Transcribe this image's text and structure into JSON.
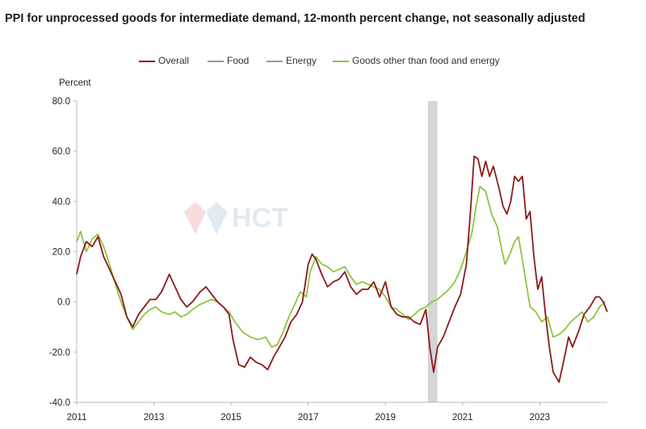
{
  "title": "PPI for unprocessed goods for intermediate demand, 12-month percent change, not seasonally adjusted",
  "colors": {
    "overall": "#8b1a1a",
    "food": "#999999",
    "energy": "#999999",
    "other": "#8cc63f",
    "recession": "#d5d5d5",
    "axis": "#bbbbbb"
  },
  "watermark": "HCT",
  "chart_data": {
    "type": "line",
    "title": "PPI for unprocessed goods for intermediate demand, 12-month percent change, not seasonally adjusted",
    "ylabel": "Percent",
    "xlabel": "",
    "ylim": [
      -40,
      80
    ],
    "xlim": [
      2011,
      2024.75
    ],
    "y_ticks": [
      "80.0",
      "60.0",
      "40.0",
      "20.0",
      "0.0",
      "-20.0",
      "-40.0"
    ],
    "x_ticks": [
      "2011",
      "2013",
      "2015",
      "2017",
      "2019",
      "2021",
      "2023"
    ],
    "legend": [
      "Overall",
      "Food",
      "Energy",
      "Goods other than food and energy"
    ],
    "recession_band": [
      2020.1,
      2020.35
    ],
    "series": [
      {
        "name": "Overall",
        "color": "#8b1a1a",
        "x": [
          2011.0,
          2011.1,
          2011.25,
          2011.4,
          2011.55,
          2011.7,
          2011.85,
          2012.0,
          2012.15,
          2012.3,
          2012.45,
          2012.6,
          2012.75,
          2012.9,
          2013.05,
          2013.2,
          2013.4,
          2013.55,
          2013.7,
          2013.85,
          2014.0,
          2014.2,
          2014.35,
          2014.5,
          2014.65,
          2014.8,
          2014.95,
          2015.05,
          2015.2,
          2015.35,
          2015.5,
          2015.65,
          2015.8,
          2015.95,
          2016.1,
          2016.25,
          2016.4,
          2016.55,
          2016.7,
          2016.85,
          2017.0,
          2017.1,
          2017.2,
          2017.35,
          2017.5,
          2017.65,
          2017.8,
          2017.95,
          2018.1,
          2018.25,
          2018.4,
          2018.55,
          2018.7,
          2018.85,
          2019.0,
          2019.15,
          2019.3,
          2019.45,
          2019.6,
          2019.75,
          2019.9,
          2020.05,
          2020.15,
          2020.25,
          2020.35,
          2020.5,
          2020.65,
          2020.8,
          2020.95,
          2021.1,
          2021.2,
          2021.3,
          2021.4,
          2021.5,
          2021.6,
          2021.7,
          2021.8,
          2021.95,
          2022.05,
          2022.15,
          2022.25,
          2022.35,
          2022.45,
          2022.55,
          2022.65,
          2022.75,
          2022.85,
          2022.95,
          2023.05,
          2023.15,
          2023.25,
          2023.35,
          2023.5,
          2023.6,
          2023.75,
          2023.85,
          2024.0,
          2024.15,
          2024.3,
          2024.45,
          2024.55,
          2024.65,
          2024.75
        ],
        "y": [
          11,
          18,
          24,
          22,
          26,
          18,
          13,
          8,
          3,
          -6,
          -10,
          -5,
          -2,
          1,
          1,
          4,
          11,
          6,
          1,
          -2,
          0,
          4,
          6,
          3,
          0,
          -2,
          -5,
          -15,
          -25,
          -26,
          -22,
          -24,
          -25,
          -27,
          -22,
          -18,
          -14,
          -8,
          -5,
          0,
          15,
          19,
          17,
          11,
          6,
          8,
          9,
          12,
          6,
          3,
          5,
          5,
          8,
          2,
          8,
          -2,
          -5,
          -6,
          -6,
          -8,
          -9,
          -3,
          -18,
          -28,
          -18,
          -14,
          -8,
          -2,
          3,
          15,
          35,
          58,
          57,
          50,
          56,
          50,
          54,
          45,
          38,
          35,
          40,
          50,
          48,
          50,
          33,
          36,
          18,
          5,
          10,
          -5,
          -18,
          -28,
          -32,
          -25,
          -14,
          -18,
          -12,
          -5,
          -2,
          2,
          2,
          0,
          -4
        ]
      },
      {
        "name": "Food",
        "color": "#999999",
        "x": [],
        "y": []
      },
      {
        "name": "Energy",
        "color": "#999999",
        "x": [],
        "y": []
      },
      {
        "name": "Goods other than food and energy",
        "color": "#8cc63f",
        "x": [
          2011.0,
          2011.1,
          2011.25,
          2011.4,
          2011.55,
          2011.7,
          2011.85,
          2012.0,
          2012.15,
          2012.3,
          2012.45,
          2012.6,
          2012.75,
          2012.9,
          2013.05,
          2013.2,
          2013.4,
          2013.55,
          2013.7,
          2013.85,
          2014.0,
          2014.2,
          2014.35,
          2014.5,
          2014.65,
          2014.8,
          2014.95,
          2015.1,
          2015.3,
          2015.5,
          2015.7,
          2015.9,
          2016.05,
          2016.2,
          2016.35,
          2016.5,
          2016.65,
          2016.8,
          2016.95,
          2017.05,
          2017.2,
          2017.35,
          2017.5,
          2017.65,
          2017.8,
          2017.95,
          2018.1,
          2018.25,
          2018.4,
          2018.55,
          2018.7,
          2018.85,
          2019.0,
          2019.15,
          2019.3,
          2019.45,
          2019.6,
          2019.75,
          2019.9,
          2020.05,
          2020.2,
          2020.35,
          2020.5,
          2020.65,
          2020.8,
          2020.95,
          2021.1,
          2021.25,
          2021.35,
          2021.45,
          2021.6,
          2021.75,
          2021.9,
          2022.0,
          2022.1,
          2022.2,
          2022.35,
          2022.45,
          2022.6,
          2022.75,
          2022.9,
          2023.05,
          2023.2,
          2023.35,
          2023.5,
          2023.65,
          2023.8,
          2023.95,
          2024.1,
          2024.25,
          2024.4,
          2024.55,
          2024.7
        ],
        "y": [
          24,
          28,
          20,
          25,
          27,
          22,
          15,
          7,
          0,
          -6,
          -11,
          -8,
          -5,
          -3,
          -2,
          -4,
          -5,
          -4,
          -6,
          -5,
          -3,
          -1,
          0,
          1,
          0,
          -2,
          -4,
          -8,
          -12,
          -14,
          -15,
          -14,
          -18,
          -17,
          -12,
          -6,
          -1,
          4,
          2,
          12,
          18,
          15,
          14,
          12,
          13,
          14,
          10,
          7,
          8,
          7,
          6,
          5,
          2,
          -2,
          -3,
          -5,
          -7,
          -5,
          -3,
          -2,
          0,
          1,
          3,
          5,
          8,
          13,
          20,
          28,
          38,
          46,
          44,
          35,
          30,
          22,
          15,
          18,
          24,
          26,
          12,
          -2,
          -4,
          -8,
          -6,
          -14,
          -13,
          -11,
          -8,
          -6,
          -4,
          -8,
          -6,
          -2,
          0
        ]
      }
    ]
  }
}
